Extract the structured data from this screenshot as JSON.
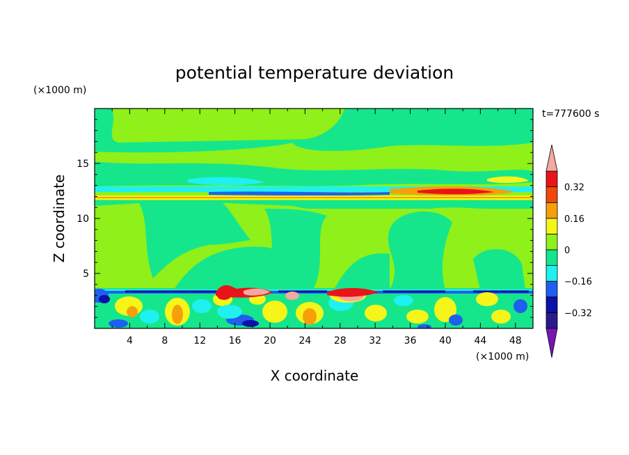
{
  "chart_data": {
    "type": "heatmap",
    "title": "potential temperature deviation",
    "xlabel": "X coordinate",
    "ylabel": "Z coordinate",
    "x_unit": "(×1000 m)",
    "y_unit": "(×1000 m)",
    "time_label": "t=777600 s",
    "xlim": [
      0,
      50
    ],
    "ylim": [
      0,
      20
    ],
    "x_ticks": [
      4,
      8,
      12,
      16,
      20,
      24,
      28,
      32,
      36,
      40,
      44,
      48
    ],
    "y_ticks": [
      5,
      10,
      15
    ],
    "colorbar": {
      "levels": [
        -0.4,
        -0.32,
        -0.24,
        -0.16,
        -0.08,
        0,
        0.08,
        0.16,
        0.24,
        0.32,
        0.4
      ],
      "colors": [
        "#2a1a8c",
        "#0a12a8",
        "#1f5ff0",
        "#1ff0f0",
        "#15e68c",
        "#8ff01a",
        "#f5f51a",
        "#f5a00a",
        "#f04a0a",
        "#e8141a"
      ],
      "under_color": "#7a14b4",
      "over_color": "#f5a8a0",
      "tick_values": [
        0.32,
        0.16,
        0,
        -0.16,
        -0.32
      ],
      "tick_labels": [
        "0.32",
        "0.16",
        "0",
        "−0.16",
        "−0.32"
      ]
    },
    "field_description": {
      "background_level": 0.04,
      "bands": [
        {
          "z": [
            12.6,
            12.9
          ],
          "value": -0.1
        },
        {
          "z": [
            11.9,
            12.2
          ],
          "value": 0.18
        },
        {
          "z": [
            3.4,
            3.7
          ],
          "value": -0.3
        }
      ]
    }
  }
}
